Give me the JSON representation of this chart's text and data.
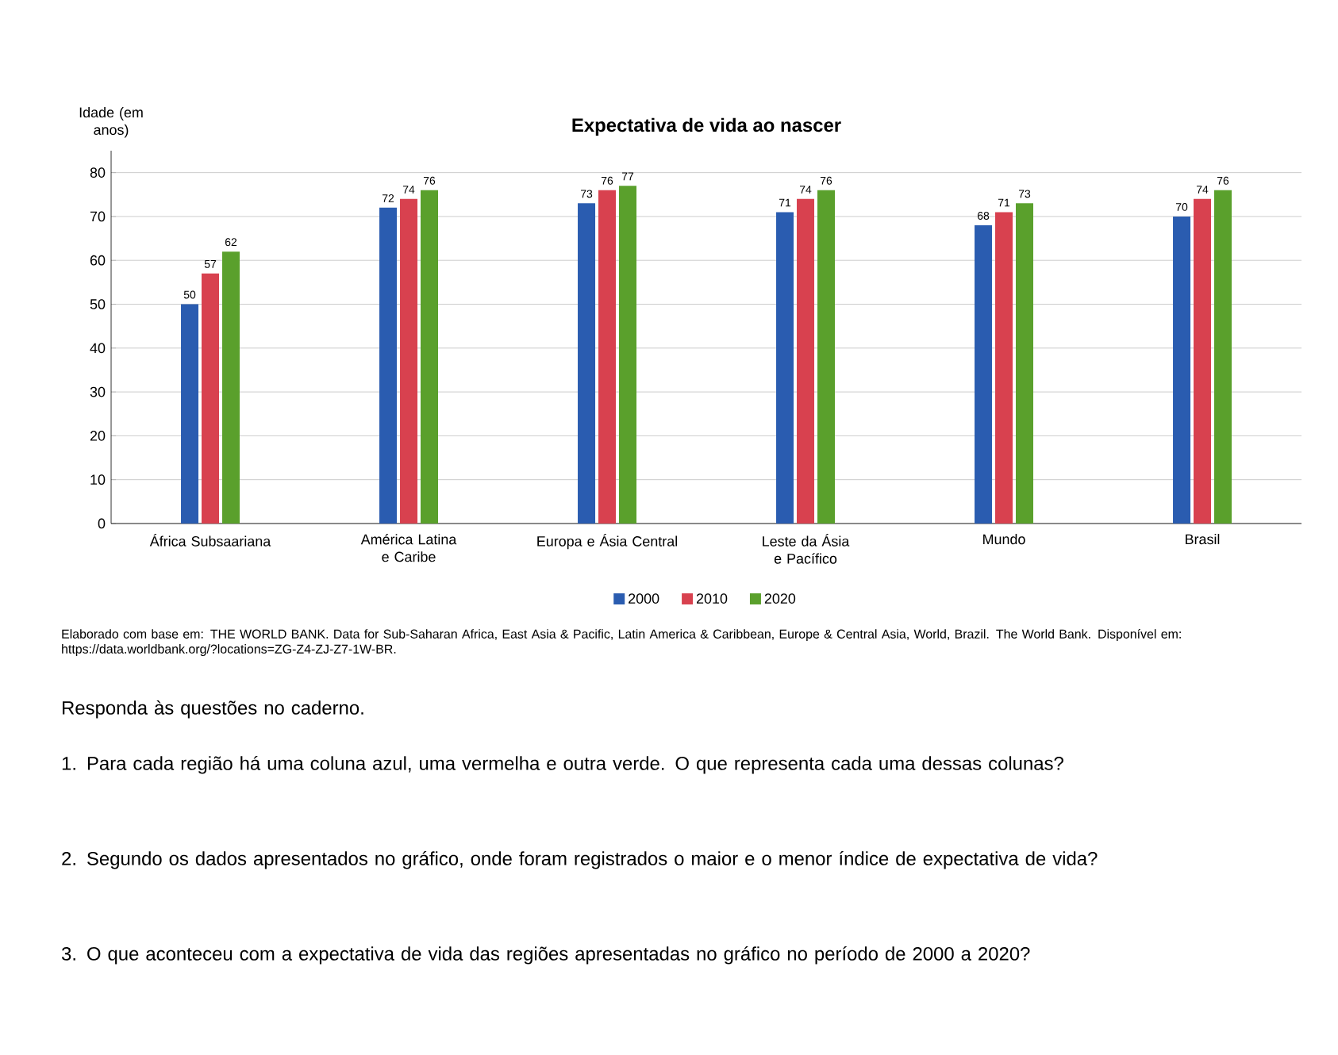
{
  "chart_data": {
    "type": "bar",
    "title": "Expectativa de vida ao nascer",
    "ylabel": "Idade (em anos)",
    "categories": [
      "África Subsaariana",
      "América Latina e Caribe",
      "Europa e Ásia Central",
      "Leste da Ásia e Pacífico",
      "Mundo",
      "Brasil"
    ],
    "series": [
      {
        "name": "2000",
        "color": "#2a5cb0",
        "values": [
          50,
          72,
          73,
          71,
          68,
          70
        ],
        "value_labels": [
          "50",
          "72",
          "73",
          "71",
          "68",
          "70"
        ]
      },
      {
        "name": "2010",
        "color": "#d8414f",
        "values": [
          57,
          74,
          76,
          74,
          71,
          74
        ],
        "value_labels": [
          "57",
          "74",
          "76",
          "74",
          "71",
          "74"
        ]
      },
      {
        "name": "2020",
        "color": "#5aa02c",
        "values": [
          62,
          76,
          77,
          76,
          73,
          76
        ],
        "value_labels": [
          "62",
          "76",
          "77",
          "76",
          "73",
          "76"
        ]
      }
    ],
    "ylim": [
      0,
      85
    ],
    "yticks": [
      0,
      10,
      20,
      30,
      40,
      50,
      60,
      70,
      80
    ],
    "grid": "y",
    "legend": "bottom",
    "annotations": [
      "Elaborado com base em: THE WORLD BANK. Data for Sub-Saharan Africa, East Asia & Pacific, Latin America & Caribbean, Europe & Central Asia, World, Brazil. The World Bank. Disponível em: https://data.worldbank.org/?locations=ZG-Z4-ZJ-Z7-1W-BR.",
      "Responda às questões no caderno.",
      "1. Para cada região há uma coluna azul, uma vermelha e outra verde. O que representa cada uma dessas colunas?",
      "2. Segundo os dados apresentados no gráfico, onde foram registrados o maior e o menor índice de expectativa de vida?",
      "3. O que aconteceu com a expectativa de vida das regiões apresentadas no gráfico no período de 2000 a 2020?"
    ]
  }
}
